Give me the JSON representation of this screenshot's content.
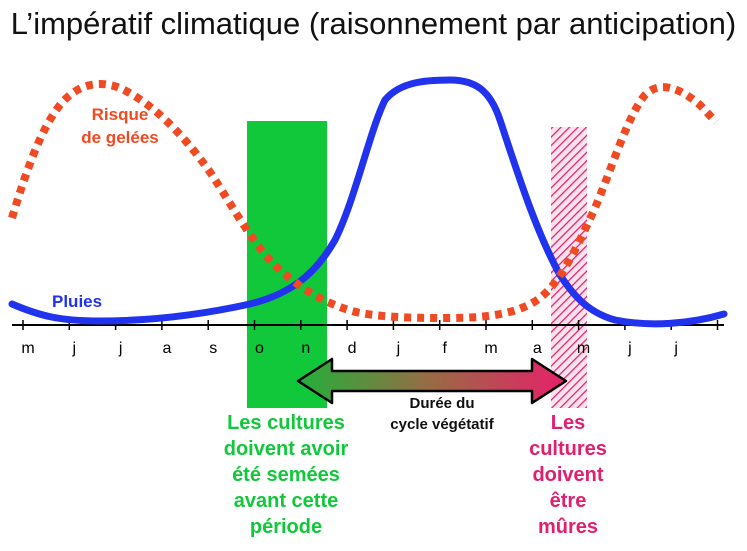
{
  "title": "L’impératif climatique (raisonnement par anticipation)",
  "labels": {
    "risk": [
      "Risque",
      "de gelées"
    ],
    "rain": "Pluies",
    "duree": [
      "Durée du",
      "cycle végétatif"
    ],
    "sowing": [
      "Les cultures",
      "doivent avoir",
      "été semées",
      "avant cette",
      "période"
    ],
    "maturity": [
      "Les",
      "cultures",
      "doivent",
      "être",
      "mûres"
    ]
  },
  "months": [
    "m",
    "j",
    "j",
    "a",
    "s",
    "o",
    "n",
    "d",
    "j",
    "f",
    "m",
    "a",
    "m",
    "j",
    "j"
  ],
  "colors": {
    "rain": "#2233ee",
    "frost": "#f04a23",
    "green": "#11c83a",
    "pink": "#e0206e"
  }
}
